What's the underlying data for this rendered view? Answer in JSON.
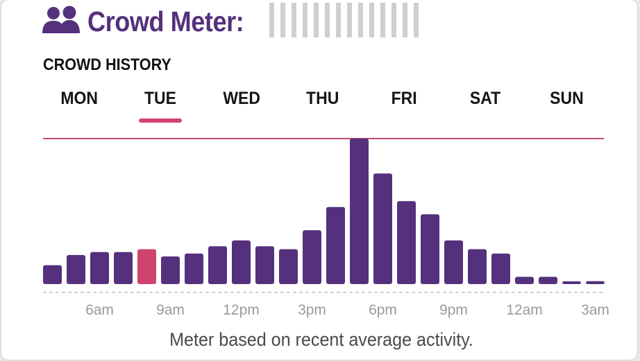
{
  "header": {
    "title": "Crowd Meter:",
    "icon": "people-icon",
    "meter_segments": 14
  },
  "section_title": "CROWD HISTORY",
  "tabs": [
    {
      "label": "MON",
      "selected": false
    },
    {
      "label": "TUE",
      "selected": true
    },
    {
      "label": "WED",
      "selected": false
    },
    {
      "label": "THU",
      "selected": false
    },
    {
      "label": "FRI",
      "selected": false
    },
    {
      "label": "SAT",
      "selected": false
    },
    {
      "label": "SUN",
      "selected": false
    }
  ],
  "colors": {
    "primary": "#55307d",
    "highlight": "#d0436e",
    "meter_gray": "#cfcfcf",
    "axis_label": "#9a9a9a",
    "peak_line": "#c04a73"
  },
  "chart_data": {
    "type": "bar",
    "categories": [
      "4am",
      "5am",
      "6am",
      "7am",
      "8am",
      "9am",
      "10am",
      "11am",
      "12pm",
      "1pm",
      "2pm",
      "3pm",
      "4pm",
      "5pm",
      "6pm",
      "7pm",
      "8pm",
      "9pm",
      "10pm",
      "11pm",
      "12am",
      "1am",
      "2am",
      "3am"
    ],
    "values": [
      13,
      20,
      22,
      22,
      24,
      19,
      21,
      26,
      30,
      26,
      24,
      37,
      53,
      100,
      76,
      57,
      48,
      30,
      24,
      21,
      5,
      5,
      1.5,
      2
    ],
    "highlight_index": 4,
    "x_tick_labels": [
      "6am",
      "9am",
      "12pm",
      "3pm",
      "6pm",
      "9pm",
      "12am",
      "3am"
    ],
    "ylim": [
      0,
      100
    ],
    "peak_reference": 100,
    "grid": false
  },
  "caption": "Meter based on recent average activity."
}
